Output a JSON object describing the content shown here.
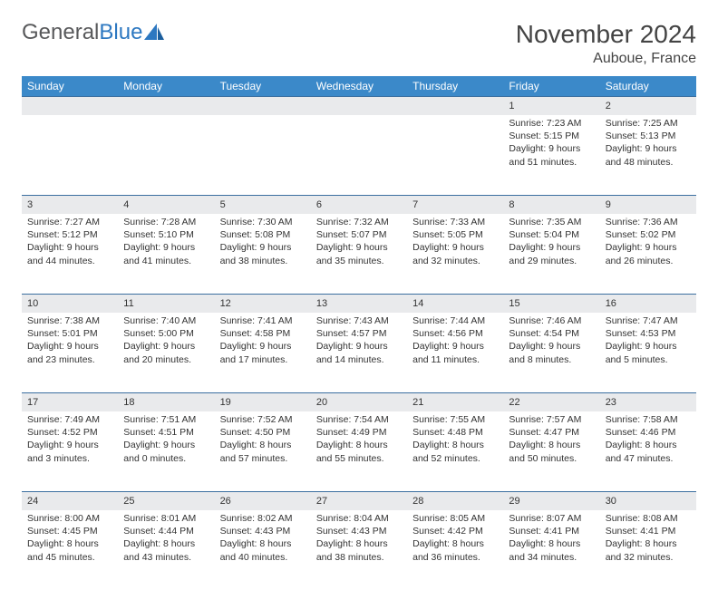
{
  "logo": {
    "text_gray": "General",
    "text_blue": "Blue"
  },
  "title": "November 2024",
  "location": "Auboue, France",
  "colors": {
    "header_bg": "#3b89c9",
    "header_text": "#ffffff",
    "daynum_bg": "#e9eaec",
    "daynum_border_top": "#3b6fa0",
    "body_text": "#333333",
    "logo_gray": "#58595b",
    "logo_blue": "#2d78c1",
    "page_bg": "#ffffff"
  },
  "typography": {
    "title_fontsize": 28,
    "location_fontsize": 16,
    "dow_fontsize": 12,
    "cell_fontsize": 10.5,
    "logo_fontsize": 24,
    "font_family": "Arial"
  },
  "days_of_week": [
    "Sunday",
    "Monday",
    "Tuesday",
    "Wednesday",
    "Thursday",
    "Friday",
    "Saturday"
  ],
  "weeks": [
    [
      null,
      null,
      null,
      null,
      null,
      {
        "n": "1",
        "sunrise": "Sunrise: 7:23 AM",
        "sunset": "Sunset: 5:15 PM",
        "daylight": "Daylight: 9 hours and 51 minutes."
      },
      {
        "n": "2",
        "sunrise": "Sunrise: 7:25 AM",
        "sunset": "Sunset: 5:13 PM",
        "daylight": "Daylight: 9 hours and 48 minutes."
      }
    ],
    [
      {
        "n": "3",
        "sunrise": "Sunrise: 7:27 AM",
        "sunset": "Sunset: 5:12 PM",
        "daylight": "Daylight: 9 hours and 44 minutes."
      },
      {
        "n": "4",
        "sunrise": "Sunrise: 7:28 AM",
        "sunset": "Sunset: 5:10 PM",
        "daylight": "Daylight: 9 hours and 41 minutes."
      },
      {
        "n": "5",
        "sunrise": "Sunrise: 7:30 AM",
        "sunset": "Sunset: 5:08 PM",
        "daylight": "Daylight: 9 hours and 38 minutes."
      },
      {
        "n": "6",
        "sunrise": "Sunrise: 7:32 AM",
        "sunset": "Sunset: 5:07 PM",
        "daylight": "Daylight: 9 hours and 35 minutes."
      },
      {
        "n": "7",
        "sunrise": "Sunrise: 7:33 AM",
        "sunset": "Sunset: 5:05 PM",
        "daylight": "Daylight: 9 hours and 32 minutes."
      },
      {
        "n": "8",
        "sunrise": "Sunrise: 7:35 AM",
        "sunset": "Sunset: 5:04 PM",
        "daylight": "Daylight: 9 hours and 29 minutes."
      },
      {
        "n": "9",
        "sunrise": "Sunrise: 7:36 AM",
        "sunset": "Sunset: 5:02 PM",
        "daylight": "Daylight: 9 hours and 26 minutes."
      }
    ],
    [
      {
        "n": "10",
        "sunrise": "Sunrise: 7:38 AM",
        "sunset": "Sunset: 5:01 PM",
        "daylight": "Daylight: 9 hours and 23 minutes."
      },
      {
        "n": "11",
        "sunrise": "Sunrise: 7:40 AM",
        "sunset": "Sunset: 5:00 PM",
        "daylight": "Daylight: 9 hours and 20 minutes."
      },
      {
        "n": "12",
        "sunrise": "Sunrise: 7:41 AM",
        "sunset": "Sunset: 4:58 PM",
        "daylight": "Daylight: 9 hours and 17 minutes."
      },
      {
        "n": "13",
        "sunrise": "Sunrise: 7:43 AM",
        "sunset": "Sunset: 4:57 PM",
        "daylight": "Daylight: 9 hours and 14 minutes."
      },
      {
        "n": "14",
        "sunrise": "Sunrise: 7:44 AM",
        "sunset": "Sunset: 4:56 PM",
        "daylight": "Daylight: 9 hours and 11 minutes."
      },
      {
        "n": "15",
        "sunrise": "Sunrise: 7:46 AM",
        "sunset": "Sunset: 4:54 PM",
        "daylight": "Daylight: 9 hours and 8 minutes."
      },
      {
        "n": "16",
        "sunrise": "Sunrise: 7:47 AM",
        "sunset": "Sunset: 4:53 PM",
        "daylight": "Daylight: 9 hours and 5 minutes."
      }
    ],
    [
      {
        "n": "17",
        "sunrise": "Sunrise: 7:49 AM",
        "sunset": "Sunset: 4:52 PM",
        "daylight": "Daylight: 9 hours and 3 minutes."
      },
      {
        "n": "18",
        "sunrise": "Sunrise: 7:51 AM",
        "sunset": "Sunset: 4:51 PM",
        "daylight": "Daylight: 9 hours and 0 minutes."
      },
      {
        "n": "19",
        "sunrise": "Sunrise: 7:52 AM",
        "sunset": "Sunset: 4:50 PM",
        "daylight": "Daylight: 8 hours and 57 minutes."
      },
      {
        "n": "20",
        "sunrise": "Sunrise: 7:54 AM",
        "sunset": "Sunset: 4:49 PM",
        "daylight": "Daylight: 8 hours and 55 minutes."
      },
      {
        "n": "21",
        "sunrise": "Sunrise: 7:55 AM",
        "sunset": "Sunset: 4:48 PM",
        "daylight": "Daylight: 8 hours and 52 minutes."
      },
      {
        "n": "22",
        "sunrise": "Sunrise: 7:57 AM",
        "sunset": "Sunset: 4:47 PM",
        "daylight": "Daylight: 8 hours and 50 minutes."
      },
      {
        "n": "23",
        "sunrise": "Sunrise: 7:58 AM",
        "sunset": "Sunset: 4:46 PM",
        "daylight": "Daylight: 8 hours and 47 minutes."
      }
    ],
    [
      {
        "n": "24",
        "sunrise": "Sunrise: 8:00 AM",
        "sunset": "Sunset: 4:45 PM",
        "daylight": "Daylight: 8 hours and 45 minutes."
      },
      {
        "n": "25",
        "sunrise": "Sunrise: 8:01 AM",
        "sunset": "Sunset: 4:44 PM",
        "daylight": "Daylight: 8 hours and 43 minutes."
      },
      {
        "n": "26",
        "sunrise": "Sunrise: 8:02 AM",
        "sunset": "Sunset: 4:43 PM",
        "daylight": "Daylight: 8 hours and 40 minutes."
      },
      {
        "n": "27",
        "sunrise": "Sunrise: 8:04 AM",
        "sunset": "Sunset: 4:43 PM",
        "daylight": "Daylight: 8 hours and 38 minutes."
      },
      {
        "n": "28",
        "sunrise": "Sunrise: 8:05 AM",
        "sunset": "Sunset: 4:42 PM",
        "daylight": "Daylight: 8 hours and 36 minutes."
      },
      {
        "n": "29",
        "sunrise": "Sunrise: 8:07 AM",
        "sunset": "Sunset: 4:41 PM",
        "daylight": "Daylight: 8 hours and 34 minutes."
      },
      {
        "n": "30",
        "sunrise": "Sunrise: 8:08 AM",
        "sunset": "Sunset: 4:41 PM",
        "daylight": "Daylight: 8 hours and 32 minutes."
      }
    ]
  ]
}
